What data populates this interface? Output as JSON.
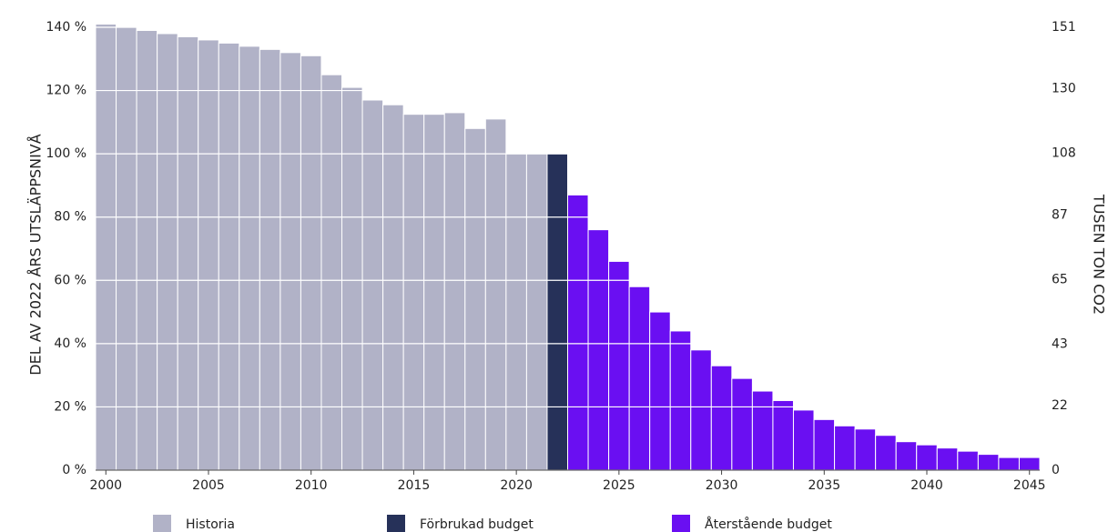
{
  "chart_data": {
    "type": "bar",
    "x": [
      2000,
      2001,
      2002,
      2003,
      2004,
      2005,
      2006,
      2007,
      2008,
      2009,
      2010,
      2011,
      2012,
      2013,
      2014,
      2015,
      2016,
      2017,
      2018,
      2019,
      2020,
      2021,
      2022,
      2023,
      2024,
      2025,
      2026,
      2027,
      2028,
      2029,
      2030,
      2031,
      2032,
      2033,
      2034,
      2035,
      2036,
      2037,
      2038,
      2039,
      2040,
      2041,
      2042,
      2043,
      2044,
      2045
    ],
    "series": [
      {
        "name": "Historia",
        "color": "#b1b2c7",
        "values": [
          141,
          140,
          139,
          138,
          137,
          136,
          135,
          134,
          133,
          132,
          131,
          125,
          121,
          117,
          115.5,
          112.5,
          112.5,
          113,
          108,
          111,
          100,
          100,
          null,
          null,
          null,
          null,
          null,
          null,
          null,
          null,
          null,
          null,
          null,
          null,
          null,
          null,
          null,
          null,
          null,
          null,
          null,
          null,
          null,
          null,
          null,
          null
        ]
      },
      {
        "name": "Förbrukad budget",
        "color": "#263159",
        "values": [
          null,
          null,
          null,
          null,
          null,
          null,
          null,
          null,
          null,
          null,
          null,
          null,
          null,
          null,
          null,
          null,
          null,
          null,
          null,
          null,
          null,
          null,
          100,
          null,
          null,
          null,
          null,
          null,
          null,
          null,
          null,
          null,
          null,
          null,
          null,
          null,
          null,
          null,
          null,
          null,
          null,
          null,
          null,
          null,
          null,
          null
        ]
      },
      {
        "name": "Återstående budget",
        "color": "#6a0ff2",
        "values": [
          null,
          null,
          null,
          null,
          null,
          null,
          null,
          null,
          null,
          null,
          null,
          null,
          null,
          null,
          null,
          null,
          null,
          null,
          null,
          null,
          null,
          null,
          null,
          87,
          76,
          66,
          58,
          50,
          44,
          38,
          33,
          29,
          25,
          22,
          19,
          16,
          14,
          13,
          11,
          9,
          8,
          7,
          6,
          5,
          4,
          4
        ]
      }
    ],
    "ylabel": "DEL AV 2022 ÅRS UTSLÄPPSNIVÅ",
    "y2label": "TUSEN TON CO2",
    "xlim": [
      1999.5,
      2045.5
    ],
    "xticks": [
      2000,
      2005,
      2010,
      2015,
      2020,
      2025,
      2030,
      2035,
      2040,
      2045
    ],
    "ylim": [
      0,
      140
    ],
    "yticks": [
      {
        "value": 0,
        "label": "0 %"
      },
      {
        "value": 20,
        "label": "20 %"
      },
      {
        "value": 40,
        "label": "40 %"
      },
      {
        "value": 60,
        "label": "60 %"
      },
      {
        "value": 80,
        "label": "80 %"
      },
      {
        "value": 100,
        "label": "100 %"
      },
      {
        "value": 120,
        "label": "120 %"
      },
      {
        "value": 140,
        "label": "140 %"
      }
    ],
    "y2lim": [
      0,
      151
    ],
    "y2ticks": [
      0,
      22,
      43,
      65,
      87,
      108,
      130,
      151
    ],
    "grid": true
  }
}
